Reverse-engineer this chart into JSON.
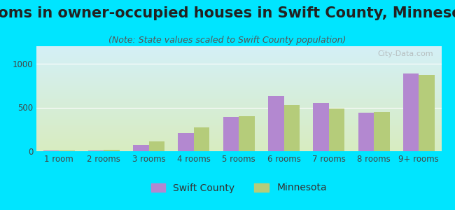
{
  "title": "Rooms in owner-occupied houses in Swift County, Minnesota",
  "subtitle": "(Note: State values scaled to Swift County population)",
  "categories": [
    "1 room",
    "2 rooms",
    "3 rooms",
    "4 rooms",
    "5 rooms",
    "6 rooms",
    "7 rooms",
    "8 rooms",
    "9+ rooms"
  ],
  "swift_county": [
    10,
    10,
    75,
    210,
    390,
    630,
    555,
    440,
    890
  ],
  "minnesota": [
    10,
    20,
    110,
    270,
    400,
    530,
    490,
    450,
    870
  ],
  "swift_color": "#b388d0",
  "mn_color": "#b5cc7a",
  "background_outer": "#00e5ff",
  "background_inner_top": "#d4f0f7",
  "background_inner_bottom": "#d8ecc0",
  "ylim": [
    0,
    1200
  ],
  "yticks": [
    0,
    500,
    1000
  ],
  "bar_width": 0.35,
  "title_fontsize": 15,
  "subtitle_fontsize": 9,
  "tick_fontsize": 8.5,
  "legend_fontsize": 10
}
